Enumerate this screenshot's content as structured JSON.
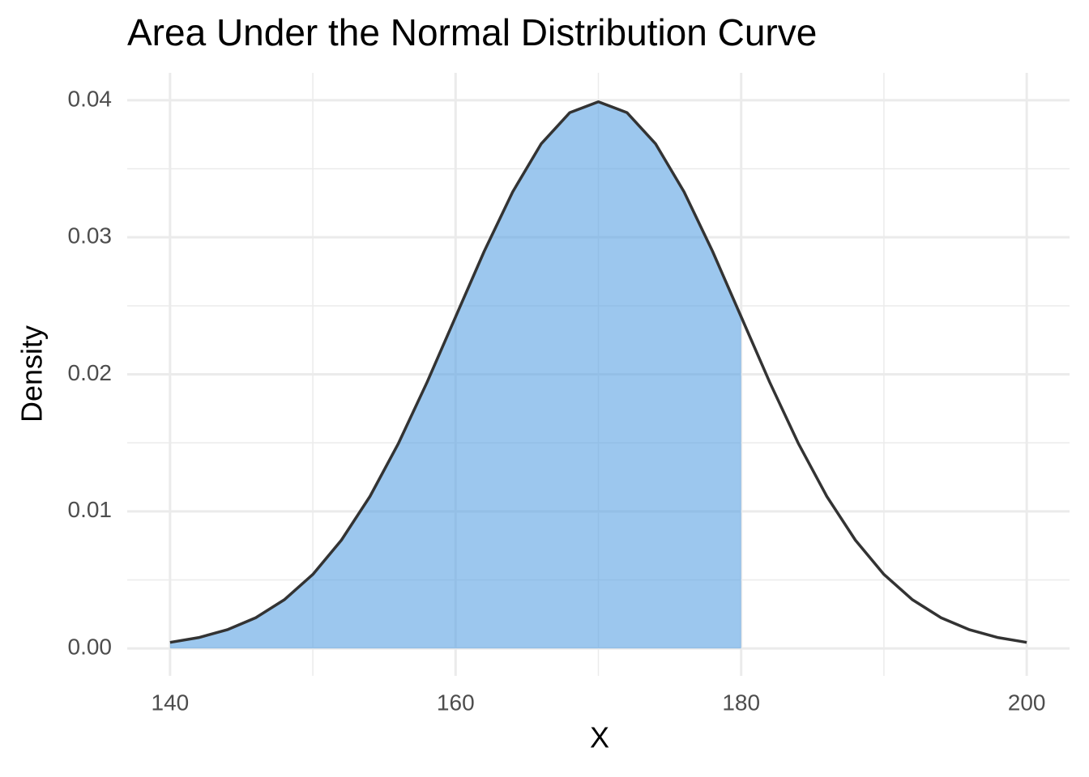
{
  "chart_data": {
    "type": "area",
    "title": "Area Under the Normal Distribution Curve",
    "xlabel": "X",
    "ylabel": "Density",
    "x": [
      140,
      142,
      144,
      146,
      148,
      150,
      152,
      154,
      156,
      158,
      160,
      162,
      164,
      166,
      168,
      170,
      172,
      174,
      176,
      178,
      180,
      182,
      184,
      186,
      188,
      190,
      192,
      194,
      196,
      198,
      200
    ],
    "series": [
      {
        "color": "#333333",
        "values": [
          0.00044,
          0.00079,
          0.00136,
          0.00224,
          0.00355,
          0.0054,
          0.0079,
          0.01109,
          0.01497,
          0.01942,
          0.0242,
          0.02897,
          0.03332,
          0.03683,
          0.0391,
          0.03989,
          0.0391,
          0.03683,
          0.03332,
          0.02897,
          0.0242,
          0.01942,
          0.01497,
          0.01109,
          0.0079,
          0.0054,
          0.00355,
          0.00224,
          0.00136,
          0.00079,
          0.00044
        ]
      }
    ],
    "shade": {
      "from": 140,
      "to": 180,
      "color": "#5fa5e3",
      "opacity": 0.62
    },
    "xlim": [
      137,
      203
    ],
    "xticks": [
      140,
      160,
      180,
      200
    ],
    "xminor": [
      150,
      170,
      190
    ],
    "ylim": [
      -0.002,
      0.042
    ],
    "yticks": [
      {
        "value": 0,
        "label": "0.00"
      },
      0.01,
      0.02,
      0.03,
      0.04
    ],
    "yminor": [
      0.005,
      0.015,
      0.025,
      0.035
    ],
    "grid": true
  }
}
